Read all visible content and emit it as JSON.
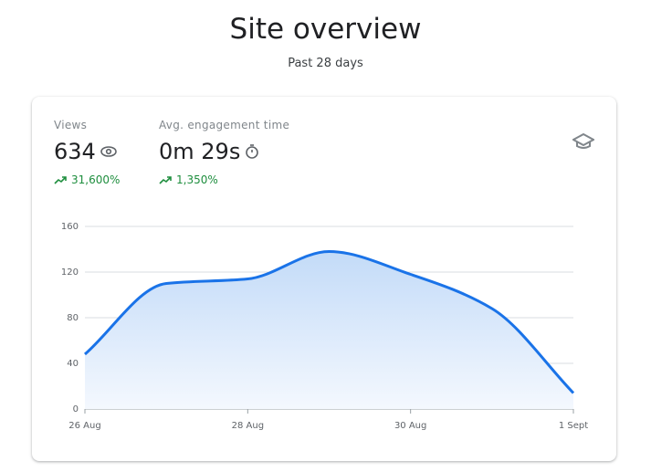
{
  "header": {
    "title": "Site overview",
    "subtitle": "Past 28 days"
  },
  "metrics": [
    {
      "label": "Views",
      "value": "634",
      "change": "31,600%"
    },
    {
      "label": "Avg. engagement time",
      "value": "0m 29s",
      "change": "1,350%"
    }
  ],
  "chart_data": {
    "type": "area",
    "categories": [
      "26 Aug",
      null,
      "28 Aug",
      null,
      "30 Aug",
      null,
      "1 Sept"
    ],
    "values": [
      48,
      110,
      114,
      138,
      118,
      88,
      14
    ],
    "color": "#1a73e8",
    "ylim": [
      0,
      160
    ],
    "yticks": [
      0,
      40,
      80,
      120,
      160
    ],
    "grid": true
  }
}
